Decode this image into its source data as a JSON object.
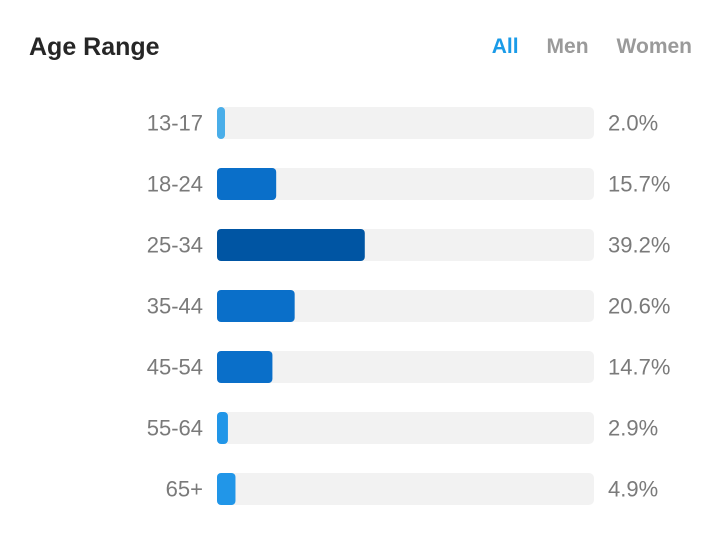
{
  "header": {
    "title": "Age Range",
    "tabs": [
      {
        "label": "All",
        "active": true
      },
      {
        "label": "Men",
        "active": false
      },
      {
        "label": "Women",
        "active": false
      }
    ]
  },
  "chart_data": {
    "type": "bar",
    "orientation": "horizontal",
    "categories": [
      "13-17",
      "18-24",
      "25-34",
      "35-44",
      "45-54",
      "55-64",
      "65+"
    ],
    "values": [
      2.0,
      15.7,
      39.2,
      20.6,
      14.7,
      2.9,
      4.9
    ],
    "value_labels": [
      "2.0%",
      "15.7%",
      "39.2%",
      "20.6%",
      "14.7%",
      "2.9%",
      "4.9%"
    ],
    "xlim": [
      0,
      100
    ],
    "grid": false,
    "legend": "none",
    "colors": {
      "track": "#f2f2f2",
      "bars": [
        "#4aaee9",
        "#0a6fc9",
        "#0055a3",
        "#0a6fc9",
        "#0a6fc9",
        "#2196e8",
        "#2196e8"
      ]
    }
  }
}
